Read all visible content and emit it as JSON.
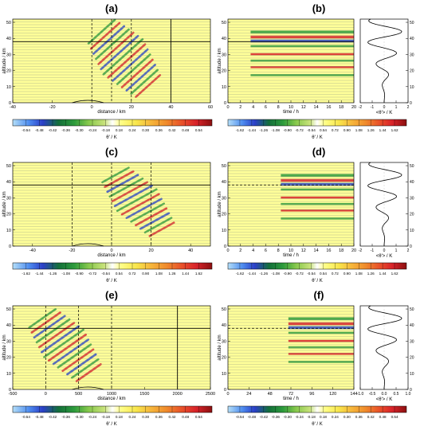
{
  "panel_labels": [
    "(a)",
    "(b)",
    "(c)",
    "(d)",
    "(e)",
    "(f)"
  ],
  "colors": {
    "background": "#ffff99",
    "wave_green": "#2e9c3c",
    "wave_red": "#d8232a",
    "wave_blue": "#2a46c8",
    "isentrope": "#9aa08a"
  },
  "colorbar_a": [
    -0.54,
    -0.48,
    -0.42,
    -0.36,
    -0.3,
    -0.24,
    -0.18,
    0.18,
    0.24,
    0.3,
    0.36,
    0.42,
    0.48,
    0.54
  ],
  "colorbar_a_text": [
    "-0.54",
    "-0.48",
    "-0.42",
    "-0.36",
    "-0.30",
    "-0.24",
    "-0.18",
    "0.18",
    "0.24",
    "0.30",
    "0.36",
    "0.42",
    "0.48",
    "0.54"
  ],
  "colorbar_b": [
    -1.62,
    -1.44,
    -1.26,
    -1.08,
    -0.9,
    -0.72,
    -0.54,
    0.54,
    0.72,
    0.9,
    1.08,
    1.26,
    1.44,
    1.62
  ],
  "colorbar_b_text": [
    "-1.62",
    "-1.44",
    "-1.26",
    "-1.08",
    "-0.90",
    "-0.72",
    "-0.54",
    "0.54",
    "0.72",
    "0.90",
    "1.08",
    "1.26",
    "1.44",
    "1.62"
  ],
  "colorbar_e_text": [
    "-0.54",
    "-0.48",
    "-0.42",
    "-0.36",
    "-0.30",
    "-0.24",
    "-0.18",
    "0.18",
    "0.24",
    "0.30",
    "0.36",
    "0.42",
    "0.48",
    "0.54"
  ],
  "colorbar_f_text": [
    "-0.54",
    "-0.48",
    "-0.42",
    "-0.36",
    "-0.30",
    "-0.24",
    "-0.18",
    "0.18",
    "0.24",
    "0.30",
    "0.36",
    "0.42",
    "0.48",
    "0.54"
  ],
  "colorbar_label": "θ' / K",
  "chart_data": [
    {
      "panel": "(a)",
      "type": "heatmap",
      "xlabel": "distance / km",
      "ylabel": "altitude / km",
      "xlim": [
        -40,
        60
      ],
      "ylim": [
        0,
        52
      ],
      "xticks": [
        "-40",
        "-20",
        "0",
        "20",
        "40",
        "60"
      ],
      "yticks": [
        "0",
        "10",
        "20",
        "30",
        "40",
        "50"
      ],
      "color_levels": [
        -0.54,
        -0.48,
        -0.42,
        -0.36,
        -0.3,
        -0.24,
        -0.18,
        0.18,
        0.24,
        0.3,
        0.36,
        0.42,
        0.48,
        0.54
      ],
      "dashed_x": [
        0,
        10,
        20
      ],
      "solid_x": [
        40
      ],
      "solid_y": 38
    },
    {
      "panel": "(b)",
      "type": "heatmap",
      "xlabel": "time / h",
      "ylabel": "altitude / km",
      "xlim": [
        0,
        20
      ],
      "ylim": [
        0,
        52
      ],
      "xticks": [
        "0",
        "2",
        "4",
        "6",
        "8",
        "10",
        "12",
        "14",
        "16",
        "18",
        "20"
      ],
      "yticks": [
        "0",
        "10",
        "20",
        "30",
        "40",
        "50"
      ],
      "color_levels": [
        -1.62,
        -1.44,
        -1.26,
        -1.08,
        -0.9,
        -0.72,
        -0.54,
        0.54,
        0.72,
        0.9,
        1.08,
        1.26,
        1.44,
        1.62
      ],
      "solid_y": 38
    },
    {
      "panel": "(b) profile",
      "type": "line",
      "xlabel": "<θ'> / K",
      "xlim": [
        -2,
        2
      ],
      "ylim": [
        0,
        52
      ],
      "xticks": [
        "-2",
        "-1",
        "0",
        "1",
        "2"
      ],
      "yticks": [
        "0",
        "10",
        "20",
        "30",
        "40",
        "50"
      ]
    },
    {
      "panel": "(c)",
      "type": "heatmap",
      "xlabel": "distance / km",
      "ylabel": "altitude / km",
      "xlim": [
        -50,
        50
      ],
      "ylim": [
        0,
        52
      ],
      "xticks": [
        "-40",
        "-20",
        "0",
        "20",
        "40"
      ],
      "yticks": [
        "0",
        "10",
        "20",
        "30",
        "40",
        "50"
      ],
      "color_levels": [
        -1.62,
        -1.44,
        -1.26,
        -1.08,
        -0.9,
        -0.72,
        -0.54,
        0.54,
        0.72,
        0.9,
        1.08,
        1.26,
        1.44,
        1.62
      ],
      "dashed_x": [
        -20,
        0,
        20
      ],
      "solid_y": 38
    },
    {
      "panel": "(d)",
      "type": "heatmap",
      "xlabel": "time / h",
      "ylabel": "altitude / km",
      "xlim": [
        0,
        20
      ],
      "ylim": [
        0,
        52
      ],
      "xticks": [
        "0",
        "2",
        "4",
        "6",
        "8",
        "10",
        "12",
        "14",
        "16",
        "18",
        "20"
      ],
      "yticks": [
        "0",
        "10",
        "20",
        "30",
        "40",
        "50"
      ],
      "color_levels": [
        -1.62,
        -1.44,
        -1.26,
        -1.08,
        -0.9,
        -0.72,
        -0.54,
        0.54,
        0.72,
        0.9,
        1.08,
        1.26,
        1.44,
        1.62
      ],
      "dashed_y": 38
    },
    {
      "panel": "(d) profile",
      "type": "line",
      "xlabel": "<θ'> / K",
      "xlim": [
        -2,
        2
      ],
      "ylim": [
        0,
        52
      ],
      "xticks": [
        "-2",
        "-1",
        "0",
        "1",
        "2"
      ],
      "yticks": [
        "0",
        "10",
        "20",
        "30",
        "40",
        "50"
      ]
    },
    {
      "panel": "(e)",
      "type": "heatmap",
      "xlabel": "distance / km",
      "ylabel": "altitude / km",
      "xlim": [
        -500,
        2500
      ],
      "ylim": [
        0,
        52
      ],
      "xticks": [
        "-500",
        "0",
        "500",
        "1000",
        "1500",
        "2000",
        "2500"
      ],
      "yticks": [
        "0",
        "10",
        "20",
        "30",
        "40",
        "50"
      ],
      "color_levels": [
        -0.54,
        -0.48,
        -0.42,
        -0.36,
        -0.3,
        -0.24,
        -0.18,
        0.18,
        0.24,
        0.3,
        0.36,
        0.42,
        0.48,
        0.54
      ],
      "dashed_x": [
        0,
        500,
        1000
      ],
      "solid_x": [
        2000
      ],
      "solid_y": 38
    },
    {
      "panel": "(f)",
      "type": "heatmap",
      "xlabel": "time / h",
      "ylabel": "altitude / km",
      "xlim": [
        0,
        144
      ],
      "ylim": [
        0,
        52
      ],
      "xticks": [
        "0",
        "24",
        "48",
        "72",
        "96",
        "120",
        "144"
      ],
      "yticks": [
        "0",
        "10",
        "20",
        "30",
        "40",
        "50"
      ],
      "color_levels": [
        -0.54,
        -0.48,
        -0.42,
        -0.36,
        -0.3,
        -0.24,
        -0.18,
        0.18,
        0.24,
        0.3,
        0.36,
        0.42,
        0.48,
        0.54
      ],
      "dashed_y": 38
    },
    {
      "panel": "(f) profile",
      "type": "line",
      "xlabel": "<θ'> / K",
      "xlim": [
        -1,
        1
      ],
      "ylim": [
        0,
        52
      ],
      "xticks": [
        "-1.0",
        "-0.5",
        "0.0",
        "0.5",
        "1.0"
      ],
      "yticks": [
        "0",
        "10",
        "20",
        "30",
        "40",
        "50"
      ]
    }
  ]
}
